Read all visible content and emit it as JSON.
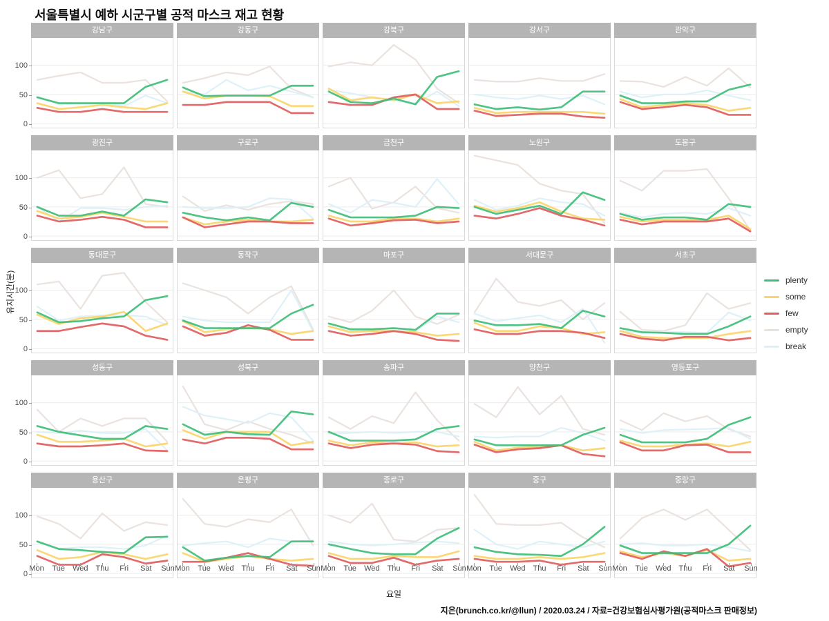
{
  "title": "서울특별시 예하 시군구별 공적 마스크 재고 현황",
  "caption": "지은(brunch.co.kr/@llun) / 2020.03.24 / 자료=건강보험심사평가원(공적마스크 판매정보)",
  "axes": {
    "x_label": "요일",
    "y_label": "유지시간(분)",
    "x_ticks": [
      "Mon",
      "Tue",
      "Wed",
      "Thu",
      "Fri",
      "Sat",
      "Sun"
    ],
    "y_ticks": [
      0,
      50,
      100
    ]
  },
  "legend": {
    "position": "right",
    "entries": [
      {
        "label": "plenty",
        "color": "#3fbe7a"
      },
      {
        "label": "some",
        "color": "#fbd56b"
      },
      {
        "label": "few",
        "color": "#e05d5d"
      },
      {
        "label": "empty",
        "color": "#e8e1dc"
      },
      {
        "label": "break",
        "color": "#dcf0f7"
      }
    ]
  },
  "style": {
    "strip_bg": "#b5b5b5",
    "strip_text": "#ffffff",
    "gridline": "#ececec",
    "panel_border": "#d9d9d9"
  },
  "chart_data": {
    "type": "line",
    "title": "서울특별시 예하 시군구별 공적 마스크 재고 현황",
    "xlabel": "요일",
    "ylabel": "유지시간(분)",
    "x": [
      "Mon",
      "Tue",
      "Wed",
      "Thu",
      "Fri",
      "Sat",
      "Sun"
    ],
    "ylim": [
      -7,
      147
    ],
    "y_ticks": [
      0,
      50,
      100
    ],
    "grid": "horizontal-only",
    "legend_position": "right",
    "series_names": [
      "plenty",
      "some",
      "few",
      "empty",
      "break"
    ],
    "series_colors": {
      "plenty": "#3fbe7a",
      "some": "#fbd56b",
      "few": "#e05d5d",
      "empty": "#e8e1dc",
      "break": "#dcf0f7"
    },
    "draw_order": [
      "empty",
      "break",
      "some",
      "few",
      "plenty"
    ],
    "facets": [
      {
        "name": "강남구",
        "plenty": [
          45,
          35,
          35,
          35,
          35,
          63,
          75
        ],
        "some": [
          35,
          25,
          28,
          32,
          28,
          25,
          35
        ],
        "few": [
          27,
          20,
          20,
          25,
          20,
          20,
          20
        ],
        "empty": [
          75,
          82,
          88,
          70,
          70,
          75,
          38
        ],
        "break": [
          47,
          33,
          35,
          35,
          30,
          48,
          35
        ]
      },
      {
        "name": "강동구",
        "plenty": [
          62,
          47,
          48,
          48,
          48,
          65,
          65
        ],
        "some": [
          55,
          43,
          48,
          48,
          47,
          30,
          30
        ],
        "few": [
          32,
          32,
          37,
          37,
          37,
          18,
          18
        ],
        "empty": [
          70,
          78,
          88,
          83,
          98,
          60,
          45
        ],
        "break": [
          55,
          50,
          75,
          57,
          65,
          55,
          45
        ]
      },
      {
        "name": "강북구",
        "plenty": [
          55,
          37,
          35,
          43,
          33,
          80,
          90
        ],
        "some": [
          60,
          40,
          45,
          40,
          50,
          35,
          38
        ],
        "few": [
          37,
          32,
          32,
          45,
          50,
          25,
          25
        ],
        "empty": [
          98,
          105,
          100,
          135,
          110,
          60,
          35
        ],
        "break": [
          58,
          52,
          45,
          40,
          35,
          55,
          30
        ]
      },
      {
        "name": "강서구",
        "plenty": [
          33,
          25,
          28,
          24,
          28,
          55,
          55
        ],
        "some": [
          27,
          18,
          20,
          20,
          20,
          20,
          17
        ],
        "few": [
          22,
          13,
          15,
          17,
          17,
          12,
          10
        ],
        "empty": [
          75,
          72,
          72,
          78,
          73,
          73,
          85
        ],
        "break": [
          50,
          45,
          42,
          48,
          42,
          48,
          33
        ]
      },
      {
        "name": "관악구",
        "plenty": [
          48,
          35,
          35,
          38,
          38,
          58,
          67
        ],
        "some": [
          42,
          28,
          32,
          35,
          32,
          22,
          27
        ],
        "few": [
          37,
          25,
          28,
          32,
          28,
          15,
          15
        ],
        "empty": [
          73,
          72,
          63,
          80,
          65,
          95,
          62
        ],
        "break": [
          55,
          45,
          50,
          50,
          57,
          48,
          40
        ]
      },
      {
        "name": "광진구",
        "plenty": [
          50,
          35,
          35,
          42,
          35,
          63,
          58
        ],
        "some": [
          43,
          30,
          33,
          40,
          33,
          25,
          25
        ],
        "few": [
          35,
          25,
          28,
          33,
          28,
          15,
          15
        ],
        "empty": [
          100,
          113,
          65,
          72,
          118,
          55,
          50
        ],
        "break": [
          50,
          25,
          48,
          48,
          45,
          50,
          52
        ]
      },
      {
        "name": "구로구",
        "plenty": [
          40,
          32,
          27,
          32,
          27,
          57,
          50
        ],
        "some": [
          32,
          20,
          25,
          28,
          25,
          25,
          28
        ],
        "few": [
          32,
          15,
          20,
          25,
          25,
          22,
          22
        ],
        "empty": [
          68,
          43,
          53,
          45,
          55,
          60,
          55
        ],
        "break": [
          50,
          48,
          48,
          50,
          65,
          63,
          30
        ]
      },
      {
        "name": "금천구",
        "plenty": [
          45,
          32,
          32,
          32,
          35,
          50,
          48
        ],
        "some": [
          35,
          25,
          25,
          30,
          30,
          25,
          30
        ],
        "few": [
          30,
          18,
          22,
          27,
          28,
          22,
          25
        ],
        "empty": [
          85,
          100,
          47,
          58,
          85,
          48,
          40
        ],
        "break": [
          55,
          40,
          62,
          57,
          50,
          98,
          55
        ]
      },
      {
        "name": "노원구",
        "plenty": [
          50,
          38,
          45,
          52,
          38,
          75,
          62
        ],
        "some": [
          52,
          42,
          48,
          58,
          42,
          30,
          28
        ],
        "few": [
          35,
          30,
          38,
          48,
          35,
          28,
          18
        ],
        "empty": [
          138,
          130,
          122,
          90,
          78,
          72,
          22
        ],
        "break": [
          62,
          45,
          52,
          65,
          58,
          55,
          35
        ]
      },
      {
        "name": "도봉구",
        "plenty": [
          38,
          28,
          32,
          32,
          28,
          55,
          50
        ],
        "some": [
          33,
          25,
          28,
          28,
          28,
          35,
          12
        ],
        "few": [
          28,
          20,
          25,
          25,
          25,
          30,
          8
        ],
        "empty": [
          95,
          78,
          112,
          112,
          115,
          65,
          10
        ],
        "break": [
          40,
          32,
          38,
          40,
          38,
          48,
          35
        ]
      },
      {
        "name": "동대문구",
        "plenty": [
          62,
          45,
          47,
          52,
          55,
          83,
          90
        ],
        "some": [
          58,
          42,
          52,
          55,
          63,
          30,
          43
        ],
        "few": [
          30,
          30,
          37,
          43,
          38,
          22,
          15
        ],
        "empty": [
          110,
          115,
          68,
          125,
          130,
          80,
          45
        ],
        "break": [
          72,
          48,
          55,
          57,
          57,
          55,
          40
        ]
      },
      {
        "name": "동작구",
        "plenty": [
          48,
          35,
          35,
          35,
          35,
          60,
          75
        ],
        "some": [
          47,
          28,
          33,
          35,
          33,
          25,
          30
        ],
        "few": [
          38,
          22,
          27,
          40,
          32,
          15,
          15
        ],
        "empty": [
          112,
          100,
          88,
          60,
          88,
          107,
          33
        ],
        "break": [
          55,
          48,
          45,
          45,
          45,
          100,
          30
        ]
      },
      {
        "name": "마포구",
        "plenty": [
          43,
          33,
          33,
          35,
          32,
          60,
          60
        ],
        "some": [
          38,
          28,
          30,
          30,
          28,
          22,
          25
        ],
        "few": [
          30,
          22,
          25,
          30,
          25,
          15,
          13
        ],
        "empty": [
          55,
          45,
          65,
          100,
          55,
          42,
          58
        ],
        "break": [
          38,
          30,
          32,
          30,
          30,
          55,
          45
        ]
      },
      {
        "name": "서대문구",
        "plenty": [
          48,
          40,
          40,
          42,
          35,
          65,
          55
        ],
        "some": [
          44,
          30,
          30,
          38,
          35,
          25,
          28
        ],
        "few": [
          33,
          25,
          25,
          30,
          30,
          27,
          18
        ],
        "empty": [
          62,
          120,
          80,
          73,
          83,
          50,
          78
        ],
        "break": [
          60,
          47,
          52,
          57,
          45,
          68,
          10
        ]
      },
      {
        "name": "서초구",
        "plenty": [
          35,
          28,
          27,
          25,
          25,
          38,
          55
        ],
        "some": [
          30,
          20,
          18,
          18,
          18,
          25,
          30
        ],
        "few": [
          25,
          17,
          14,
          20,
          20,
          14,
          18
        ],
        "empty": [
          63,
          32,
          30,
          40,
          95,
          68,
          78
        ],
        "break": [
          30,
          27,
          28,
          28,
          27,
          62,
          48
        ]
      },
      {
        "name": "성동구",
        "plenty": [
          60,
          50,
          44,
          38,
          38,
          60,
          55
        ],
        "some": [
          45,
          33,
          33,
          35,
          38,
          25,
          30
        ],
        "few": [
          30,
          25,
          25,
          27,
          30,
          18,
          17
        ],
        "empty": [
          88,
          50,
          73,
          60,
          73,
          73,
          33
        ],
        "break": [
          50,
          48,
          52,
          48,
          48,
          55,
          18
        ]
      },
      {
        "name": "성북구",
        "plenty": [
          63,
          45,
          50,
          46,
          45,
          85,
          80
        ],
        "some": [
          53,
          38,
          50,
          50,
          50,
          27,
          33
        ],
        "few": [
          37,
          30,
          40,
          40,
          38,
          20,
          20
        ],
        "empty": [
          128,
          63,
          53,
          68,
          55,
          45,
          30
        ],
        "break": [
          93,
          78,
          72,
          65,
          82,
          75,
          35
        ]
      },
      {
        "name": "송파구",
        "plenty": [
          50,
          35,
          35,
          35,
          37,
          55,
          60
        ],
        "some": [
          35,
          27,
          32,
          30,
          32,
          25,
          27
        ],
        "few": [
          30,
          22,
          28,
          30,
          28,
          17,
          15
        ],
        "empty": [
          75,
          55,
          77,
          65,
          118,
          70,
          35
        ],
        "break": [
          48,
          48,
          50,
          48,
          50,
          50,
          42
        ]
      },
      {
        "name": "양천구",
        "plenty": [
          37,
          27,
          27,
          27,
          27,
          45,
          57
        ],
        "some": [
          33,
          18,
          23,
          25,
          27,
          18,
          22
        ],
        "few": [
          28,
          15,
          20,
          22,
          27,
          12,
          8
        ],
        "empty": [
          98,
          75,
          127,
          80,
          112,
          55,
          45
        ],
        "break": [
          42,
          40,
          42,
          42,
          57,
          48,
          35
        ]
      },
      {
        "name": "영등포구",
        "plenty": [
          45,
          32,
          32,
          32,
          38,
          62,
          75
        ],
        "some": [
          35,
          25,
          25,
          28,
          30,
          25,
          33
        ],
        "few": [
          32,
          18,
          18,
          27,
          28,
          15,
          15
        ],
        "empty": [
          70,
          53,
          82,
          68,
          77,
          55,
          42
        ],
        "break": [
          55,
          48,
          53,
          54,
          55,
          57,
          38
        ]
      },
      {
        "name": "용산구",
        "plenty": [
          55,
          42,
          40,
          37,
          35,
          62,
          63
        ],
        "some": [
          40,
          25,
          28,
          37,
          33,
          25,
          33
        ],
        "few": [
          30,
          15,
          15,
          33,
          28,
          17,
          22
        ],
        "empty": [
          98,
          85,
          60,
          103,
          73,
          88,
          83
        ],
        "break": [
          55,
          42,
          45,
          45,
          42,
          48,
          65
        ]
      },
      {
        "name": "은평구",
        "plenty": [
          45,
          22,
          27,
          30,
          28,
          55,
          55
        ],
        "some": [
          35,
          20,
          25,
          30,
          25,
          22,
          25
        ],
        "few": [
          20,
          20,
          27,
          35,
          25,
          15,
          13
        ],
        "empty": [
          128,
          85,
          80,
          93,
          88,
          110,
          48
        ],
        "break": [
          48,
          52,
          55,
          45,
          60,
          55,
          57
        ]
      },
      {
        "name": "종로구",
        "plenty": [
          50,
          42,
          35,
          33,
          33,
          60,
          78
        ],
        "some": [
          35,
          25,
          25,
          30,
          28,
          28,
          38
        ],
        "few": [
          30,
          18,
          18,
          27,
          15,
          22,
          25
        ],
        "empty": [
          100,
          87,
          120,
          58,
          55,
          75,
          78
        ],
        "break": [
          55,
          50,
          48,
          50,
          53,
          55,
          52
        ]
      },
      {
        "name": "중구",
        "plenty": [
          45,
          37,
          33,
          32,
          30,
          50,
          80
        ],
        "some": [
          30,
          25,
          25,
          28,
          25,
          28,
          35
        ],
        "few": [
          25,
          20,
          20,
          22,
          15,
          20,
          20
        ],
        "empty": [
          135,
          85,
          83,
          83,
          87,
          62,
          45
        ],
        "break": [
          75,
          50,
          42,
          55,
          50,
          45,
          55
        ]
      },
      {
        "name": "중랑구",
        "plenty": [
          48,
          35,
          35,
          35,
          35,
          50,
          82
        ],
        "some": [
          38,
          28,
          35,
          30,
          40,
          22,
          25
        ],
        "few": [
          35,
          25,
          38,
          30,
          42,
          12,
          18
        ],
        "empty": [
          60,
          95,
          110,
          92,
          110,
          75,
          40
        ],
        "break": [
          50,
          52,
          48,
          48,
          50,
          45,
          38
        ]
      }
    ]
  }
}
